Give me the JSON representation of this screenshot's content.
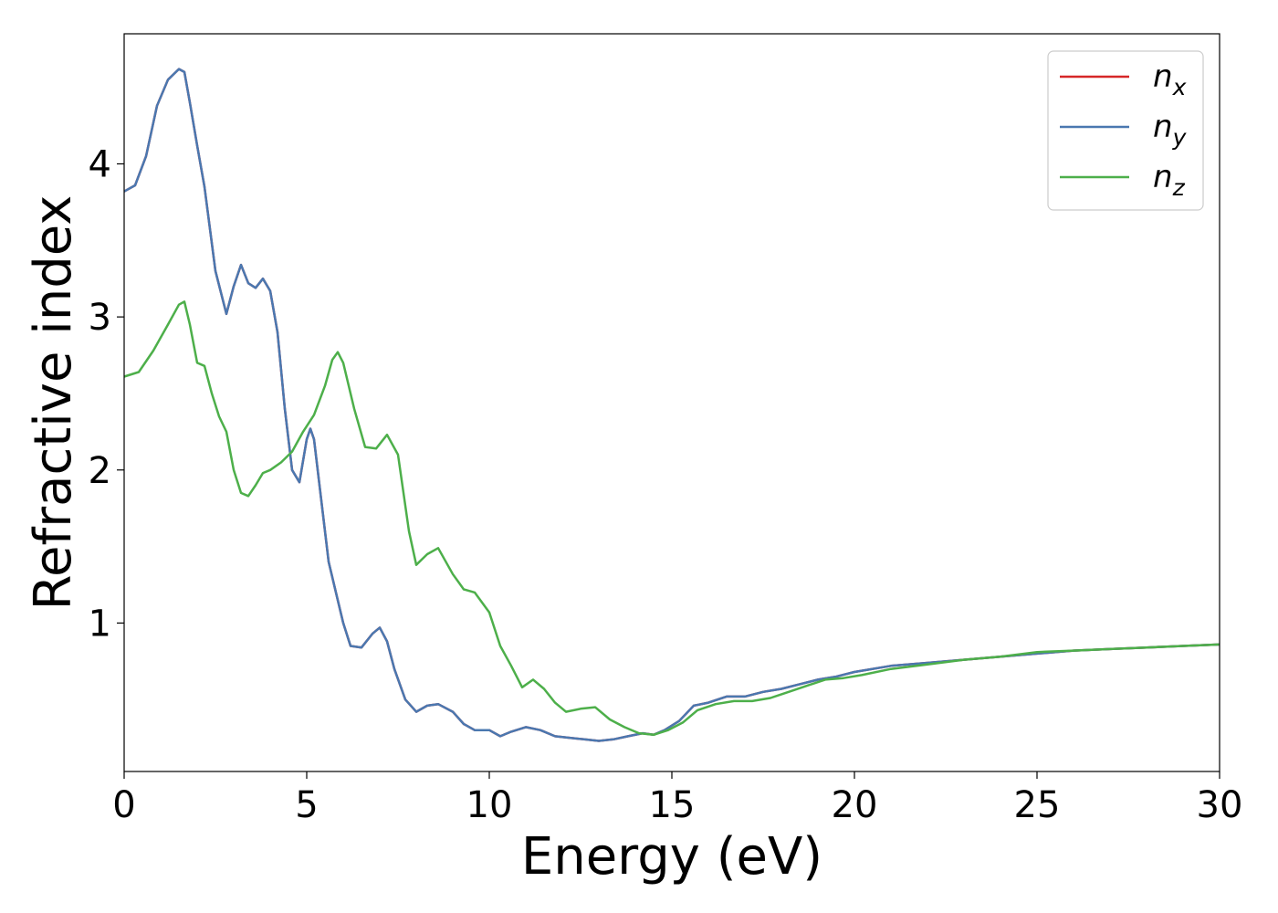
{
  "chart_data": {
    "type": "line",
    "title": "",
    "xlabel": "Energy (eV)",
    "ylabel": "Refractive index",
    "xlim": [
      0,
      30
    ],
    "ylim": [
      0.03,
      4.85
    ],
    "xticks": [
      0,
      5,
      10,
      15,
      20,
      25,
      30
    ],
    "yticks": [
      1,
      2,
      3,
      4
    ],
    "grid": false,
    "legend_position": "top-right",
    "series": [
      {
        "name": "n",
        "subscript": "x",
        "color": "#d62728",
        "x": [
          0,
          0.3,
          0.6,
          0.9,
          1.2,
          1.5,
          1.65,
          1.8,
          2.0,
          2.2,
          2.5,
          2.8,
          3.0,
          3.2,
          3.4,
          3.6,
          3.8,
          4.0,
          4.2,
          4.4,
          4.6,
          4.8,
          5.0,
          5.1,
          5.2,
          5.4,
          5.6,
          5.8,
          6.0,
          6.2,
          6.5,
          6.8,
          7.0,
          7.2,
          7.4,
          7.7,
          8.0,
          8.3,
          8.6,
          9.0,
          9.3,
          9.6,
          10.0,
          10.3,
          10.6,
          11.0,
          11.4,
          11.8,
          12.2,
          12.6,
          13.0,
          13.4,
          13.8,
          14.2,
          14.5,
          14.8,
          15.2,
          15.6,
          16.0,
          16.5,
          17.0,
          17.5,
          18.0,
          18.5,
          19.0,
          19.5,
          20.0,
          21.0,
          22.0,
          23.0,
          24.0,
          25.0,
          26.0,
          27.0,
          28.0,
          29.0,
          30.0
        ],
        "y": [
          3.82,
          3.86,
          4.05,
          4.38,
          4.55,
          4.62,
          4.6,
          4.4,
          4.12,
          3.85,
          3.3,
          3.02,
          3.2,
          3.34,
          3.22,
          3.19,
          3.25,
          3.17,
          2.9,
          2.4,
          2.0,
          1.92,
          2.2,
          2.27,
          2.2,
          1.8,
          1.4,
          1.2,
          1.0,
          0.85,
          0.84,
          0.93,
          0.97,
          0.88,
          0.7,
          0.5,
          0.42,
          0.46,
          0.47,
          0.42,
          0.34,
          0.3,
          0.3,
          0.26,
          0.29,
          0.32,
          0.3,
          0.26,
          0.25,
          0.24,
          0.23,
          0.24,
          0.26,
          0.28,
          0.27,
          0.3,
          0.36,
          0.46,
          0.48,
          0.52,
          0.52,
          0.55,
          0.57,
          0.6,
          0.63,
          0.65,
          0.68,
          0.72,
          0.74,
          0.76,
          0.78,
          0.8,
          0.82,
          0.83,
          0.84,
          0.85,
          0.86
        ]
      },
      {
        "name": "n",
        "subscript": "y",
        "color": "#4a78b0",
        "x": [
          0,
          0.3,
          0.6,
          0.9,
          1.2,
          1.5,
          1.65,
          1.8,
          2.0,
          2.2,
          2.5,
          2.8,
          3.0,
          3.2,
          3.4,
          3.6,
          3.8,
          4.0,
          4.2,
          4.4,
          4.6,
          4.8,
          5.0,
          5.1,
          5.2,
          5.4,
          5.6,
          5.8,
          6.0,
          6.2,
          6.5,
          6.8,
          7.0,
          7.2,
          7.4,
          7.7,
          8.0,
          8.3,
          8.6,
          9.0,
          9.3,
          9.6,
          10.0,
          10.3,
          10.6,
          11.0,
          11.4,
          11.8,
          12.2,
          12.6,
          13.0,
          13.4,
          13.8,
          14.2,
          14.5,
          14.8,
          15.2,
          15.6,
          16.0,
          16.5,
          17.0,
          17.5,
          18.0,
          18.5,
          19.0,
          19.5,
          20.0,
          21.0,
          22.0,
          23.0,
          24.0,
          25.0,
          26.0,
          27.0,
          28.0,
          29.0,
          30.0
        ],
        "y": [
          3.82,
          3.86,
          4.05,
          4.38,
          4.55,
          4.62,
          4.6,
          4.4,
          4.12,
          3.85,
          3.3,
          3.02,
          3.2,
          3.34,
          3.22,
          3.19,
          3.25,
          3.17,
          2.9,
          2.4,
          2.0,
          1.92,
          2.2,
          2.27,
          2.2,
          1.8,
          1.4,
          1.2,
          1.0,
          0.85,
          0.84,
          0.93,
          0.97,
          0.88,
          0.7,
          0.5,
          0.42,
          0.46,
          0.47,
          0.42,
          0.34,
          0.3,
          0.3,
          0.26,
          0.29,
          0.32,
          0.3,
          0.26,
          0.25,
          0.24,
          0.23,
          0.24,
          0.26,
          0.28,
          0.27,
          0.3,
          0.36,
          0.46,
          0.48,
          0.52,
          0.52,
          0.55,
          0.57,
          0.6,
          0.63,
          0.65,
          0.68,
          0.72,
          0.74,
          0.76,
          0.78,
          0.8,
          0.82,
          0.83,
          0.84,
          0.85,
          0.86
        ]
      },
      {
        "name": "n",
        "subscript": "z",
        "color": "#4daf4a",
        "x": [
          0,
          0.4,
          0.8,
          1.2,
          1.5,
          1.65,
          1.8,
          2.0,
          2.2,
          2.4,
          2.6,
          2.8,
          3.0,
          3.2,
          3.4,
          3.6,
          3.8,
          4.0,
          4.3,
          4.6,
          4.9,
          5.2,
          5.5,
          5.7,
          5.85,
          6.0,
          6.3,
          6.6,
          6.9,
          7.2,
          7.5,
          7.8,
          8.0,
          8.3,
          8.6,
          9.0,
          9.3,
          9.6,
          10.0,
          10.3,
          10.6,
          10.9,
          11.2,
          11.5,
          11.8,
          12.1,
          12.5,
          12.9,
          13.3,
          13.7,
          14.1,
          14.5,
          14.9,
          15.3,
          15.7,
          16.2,
          16.7,
          17.2,
          17.7,
          18.2,
          18.7,
          19.2,
          19.7,
          20.2,
          21.0,
          22.0,
          23.0,
          24.0,
          25.0,
          26.0,
          27.0,
          28.0,
          29.0,
          30.0
        ],
        "y": [
          2.61,
          2.64,
          2.78,
          2.95,
          3.08,
          3.1,
          2.95,
          2.7,
          2.68,
          2.5,
          2.35,
          2.25,
          2.0,
          1.85,
          1.83,
          1.9,
          1.98,
          2.0,
          2.05,
          2.12,
          2.25,
          2.36,
          2.55,
          2.72,
          2.77,
          2.7,
          2.4,
          2.15,
          2.14,
          2.23,
          2.1,
          1.6,
          1.38,
          1.45,
          1.49,
          1.32,
          1.22,
          1.2,
          1.07,
          0.85,
          0.72,
          0.58,
          0.63,
          0.57,
          0.48,
          0.42,
          0.44,
          0.45,
          0.37,
          0.32,
          0.28,
          0.27,
          0.3,
          0.35,
          0.43,
          0.47,
          0.49,
          0.49,
          0.51,
          0.55,
          0.59,
          0.63,
          0.64,
          0.66,
          0.7,
          0.73,
          0.76,
          0.78,
          0.81,
          0.82,
          0.83,
          0.84,
          0.85,
          0.86
        ]
      }
    ]
  }
}
